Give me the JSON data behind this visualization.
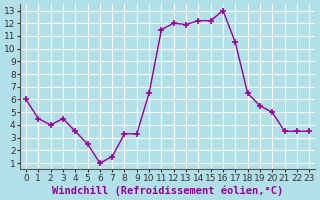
{
  "x": [
    0,
    1,
    2,
    3,
    4,
    5,
    6,
    7,
    8,
    9,
    10,
    11,
    12,
    13,
    14,
    15,
    16,
    17,
    18,
    19,
    20,
    21,
    22,
    23
  ],
  "y": [
    6.0,
    4.5,
    4.0,
    4.5,
    3.5,
    2.5,
    1.0,
    1.5,
    3.3,
    3.3,
    6.5,
    11.5,
    12.0,
    11.9,
    12.2,
    12.2,
    13.0,
    10.5,
    6.5,
    5.5,
    5.0,
    3.5,
    3.5,
    3.5
  ],
  "line_color": "#990099",
  "marker": "+",
  "marker_size": 5,
  "marker_linewidth": 1.2,
  "bg_color": "#b2e0e8",
  "grid_color": "#ffffff",
  "xlabel": "Windchill (Refroidissement éolien,°C)",
  "xlabel_color": "#990099",
  "xlim": [
    -0.5,
    23.5
  ],
  "ylim": [
    0.5,
    13.5
  ],
  "xticks": [
    0,
    1,
    2,
    3,
    4,
    5,
    6,
    7,
    8,
    9,
    10,
    11,
    12,
    13,
    14,
    15,
    16,
    17,
    18,
    19,
    20,
    21,
    22,
    23
  ],
  "yticks": [
    1,
    2,
    3,
    4,
    5,
    6,
    7,
    8,
    9,
    10,
    11,
    12,
    13
  ],
  "tick_fontsize": 6.5,
  "label_fontsize": 7.5
}
